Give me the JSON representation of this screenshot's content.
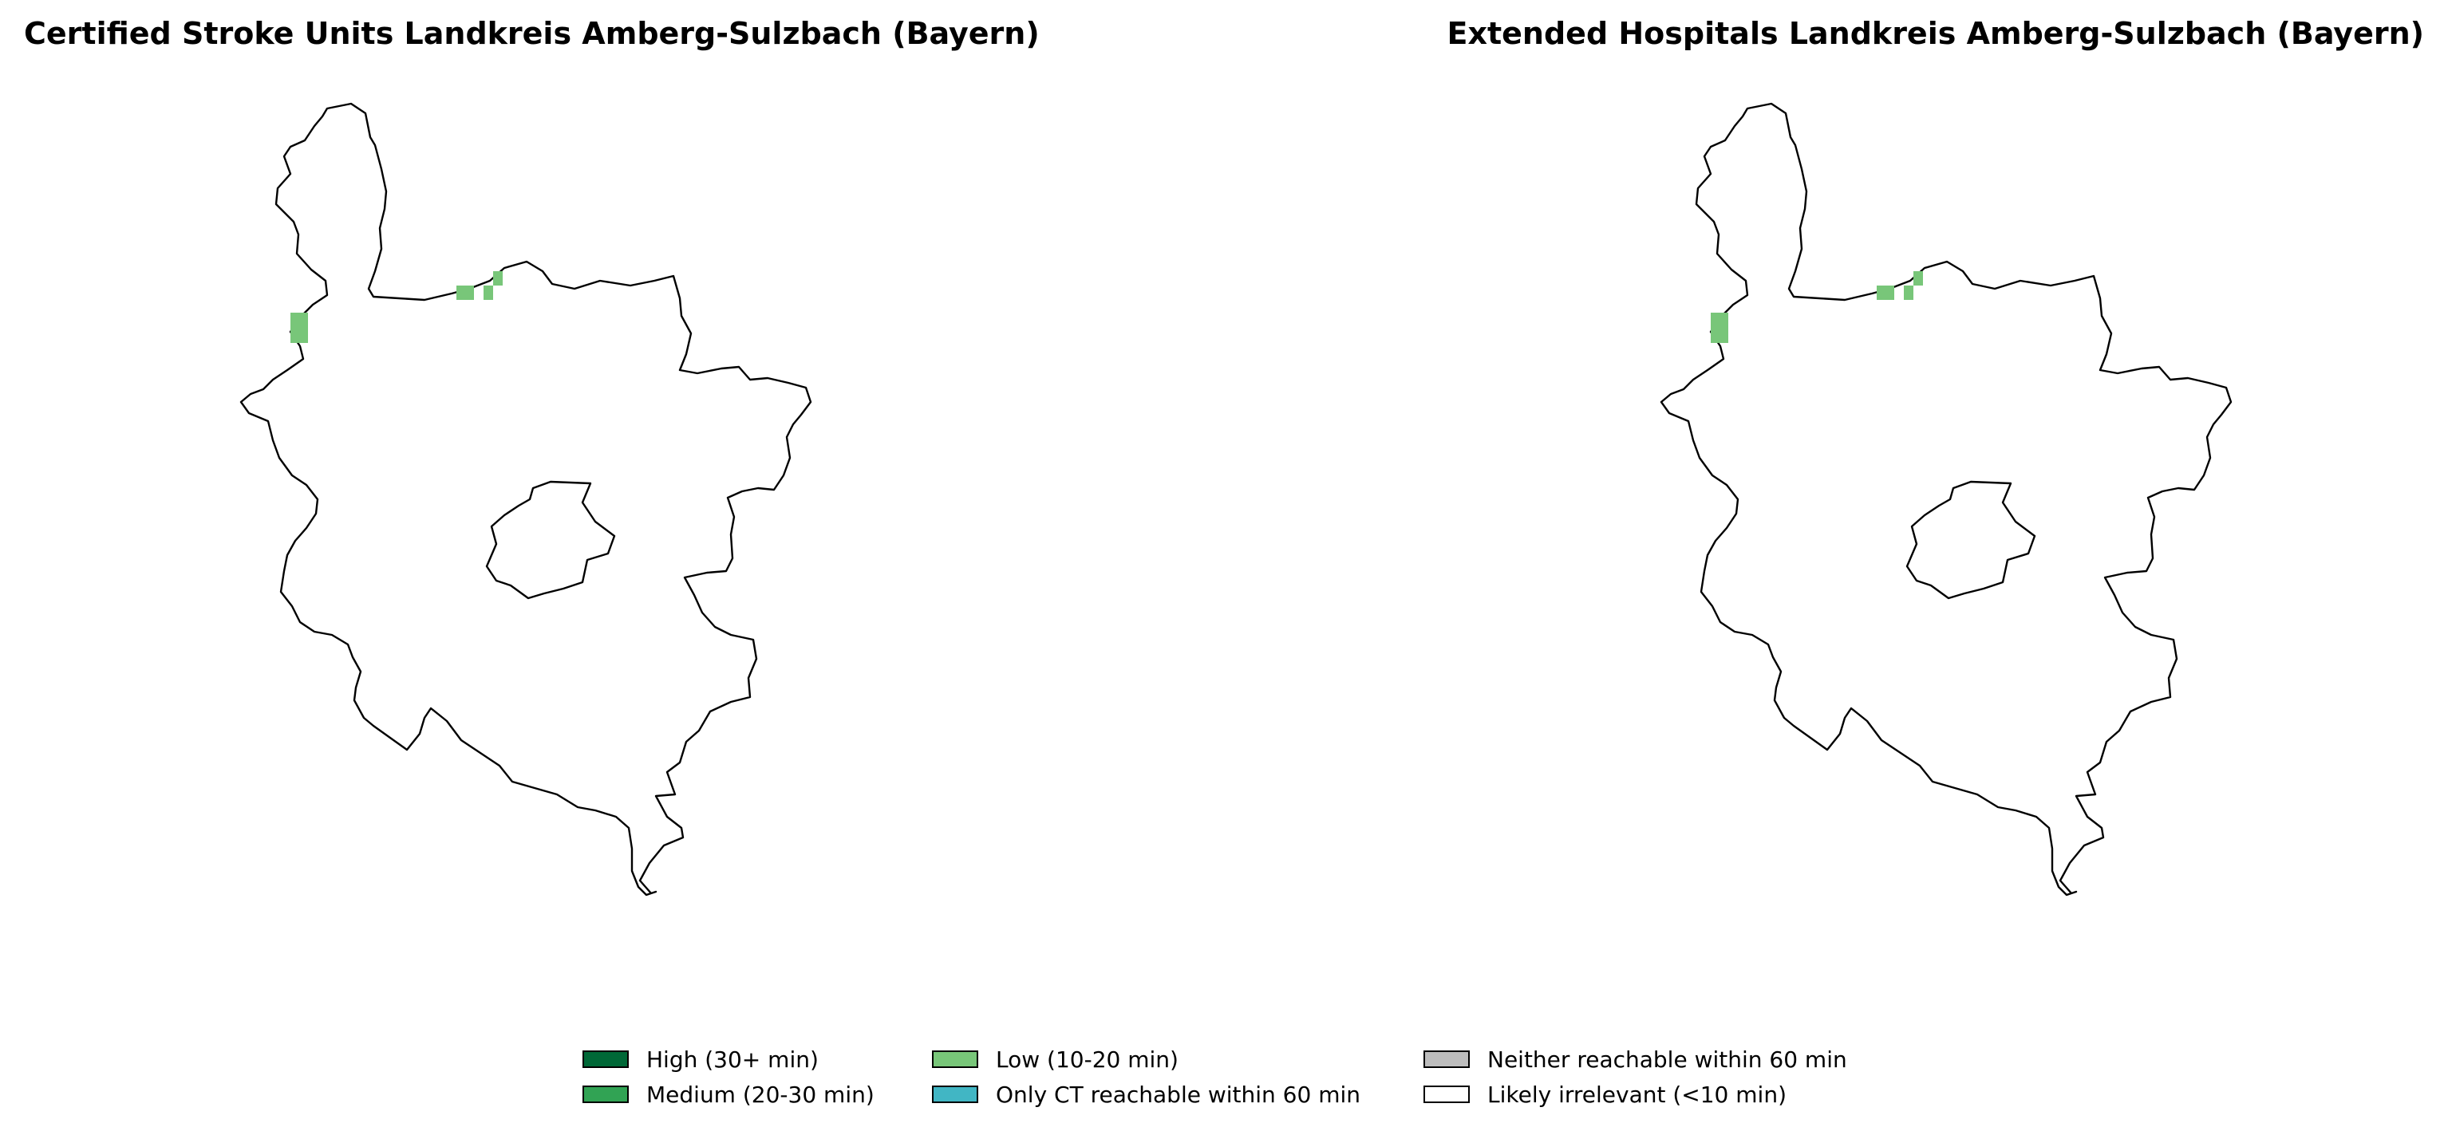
{
  "panels": [
    {
      "title": "Certified Stroke Units Landkreis Amberg-Sulzbach (Bayern)"
    },
    {
      "title": "Extended Hospitals Landkreis Amberg-Sulzbach (Bayern)"
    }
  ],
  "legend": {
    "items": [
      {
        "label": "High (30+ min)",
        "color": "#006837"
      },
      {
        "label": "Medium (20-30 min)",
        "color": "#31a354"
      },
      {
        "label": "Low (10-20 min)",
        "color": "#78c679"
      },
      {
        "label": "Only CT reachable within 60 min",
        "color": "#41b6c4"
      },
      {
        "label": "Neither reachable within 60 min",
        "color": "#bdbdbd"
      },
      {
        "label": "Likely irrelevant (<10 min)",
        "color": "#ffffff"
      }
    ]
  },
  "colors": {
    "boundary": "#000000",
    "low_cells": "#78c679"
  }
}
